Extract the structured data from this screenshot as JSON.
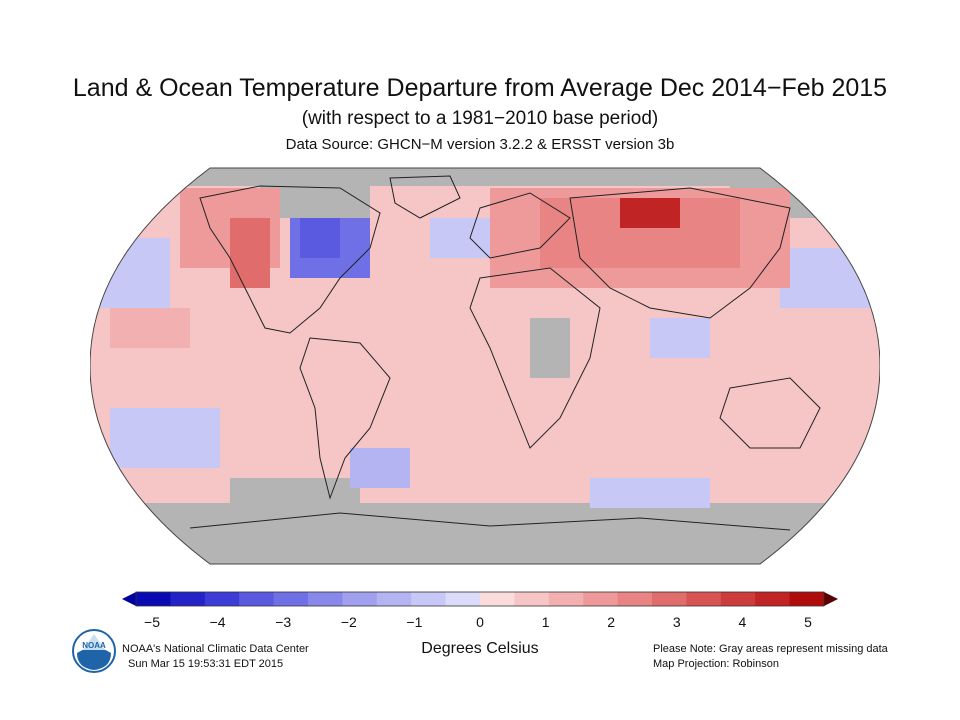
{
  "title": "Land & Ocean Temperature Departure from Average Dec 2014−Feb 2015",
  "subtitle": "(with respect to a 1981−2010 base period)",
  "source": "Data Source: GHCN−M version 3.2.2 & ERSST version 3b",
  "colorbar": {
    "ticks": [
      "−5",
      "−4",
      "−3",
      "−2",
      "−1",
      "0",
      "1",
      "2",
      "3",
      "4",
      "5"
    ],
    "units": "Degrees Celsius",
    "colors_cold": [
      "#0a0ab4",
      "#2323c8",
      "#3c3cd6",
      "#5a5ae0",
      "#7070e6",
      "#8888ea",
      "#a0a0ee",
      "#b4b4f2",
      "#c8c8f6",
      "#dcdcfa"
    ],
    "colors_warm": [
      "#fadcdc",
      "#f6c6c6",
      "#f2b0b0",
      "#ee9a9a",
      "#e88484",
      "#e06c6c",
      "#d85454",
      "#cc3c3c",
      "#c02424",
      "#b00c0c"
    ],
    "overflow_cold": "#0000a0",
    "overflow_warm": "#5a0000"
  },
  "map": {
    "projection_note": "Map Projection: Robinson",
    "missing_color": "#b4b4b4",
    "ocean_default": "#f6c6c6"
  },
  "footer": {
    "org": "NOAA's National Climatic Data Center",
    "timestamp": "Sun Mar 15 19:53:31 EDT 2015",
    "note": "Please Note: Gray areas represent missing data",
    "projection": "Map Projection: Robinson",
    "logo_text": "NOAA"
  }
}
